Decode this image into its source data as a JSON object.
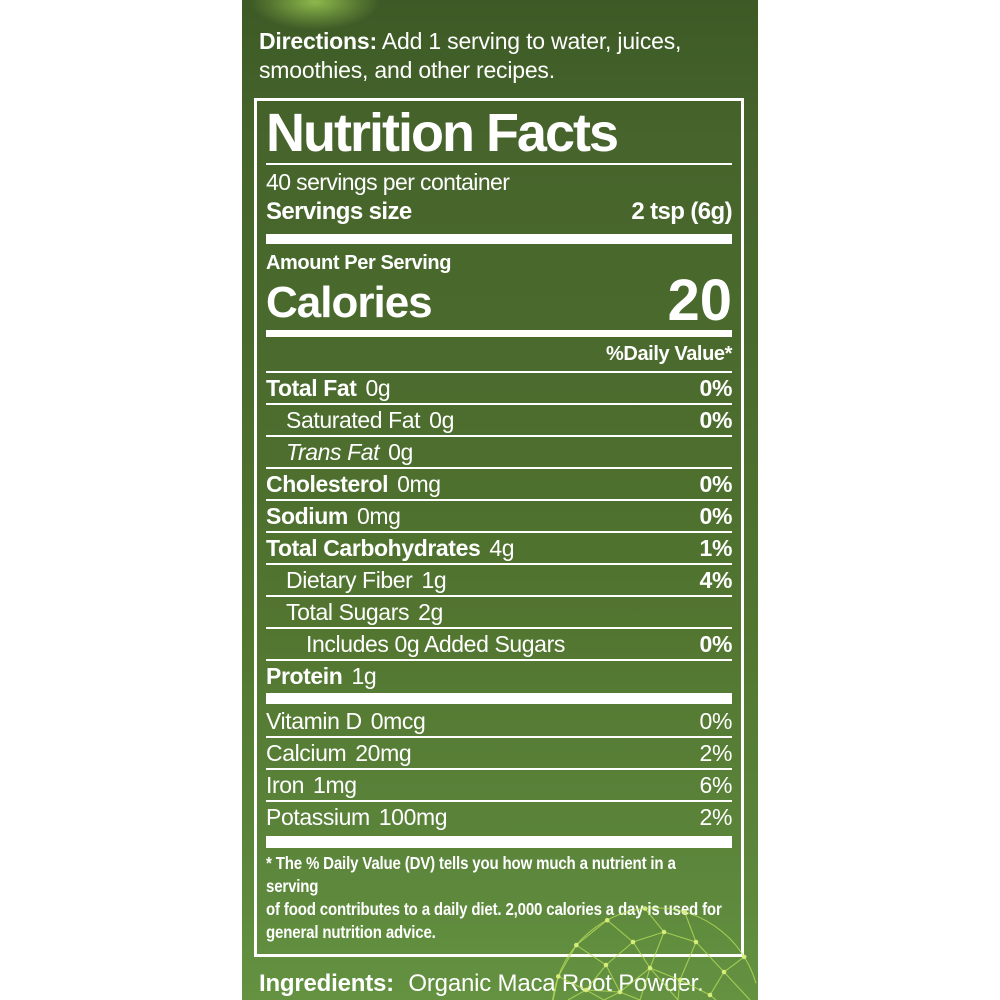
{
  "directions": {
    "label": "Directions:",
    "text": "Add 1 serving to water, juices, smoothies, and other recipes."
  },
  "nutrition": {
    "title": "Nutrition Facts",
    "servings_per_container": "40 servings per container",
    "serving_size_label": "Servings size",
    "serving_size_value": "2 tsp (6g)",
    "amount_per_serving": "Amount Per Serving",
    "calories_label": "Calories",
    "calories_value": "20",
    "daily_value_header": "%Daily Value*",
    "rows": [
      {
        "name": "Total Fat",
        "amount": "0g",
        "dv": "0%",
        "style": "bold",
        "indent": 0
      },
      {
        "name": "Saturated Fat",
        "amount": "0g",
        "dv": "0%",
        "style": "regular",
        "indent": 1
      },
      {
        "name": "Trans Fat",
        "amount": "0g",
        "dv": "",
        "style": "italic",
        "indent": 1
      },
      {
        "name": "Cholesterol",
        "amount": "0mg",
        "dv": "0%",
        "style": "bold",
        "indent": 0
      },
      {
        "name": "Sodium",
        "amount": "0mg",
        "dv": "0%",
        "style": "bold",
        "indent": 0
      },
      {
        "name": "Total Carbohydrates",
        "amount": "4g",
        "dv": "1%",
        "style": "bold",
        "indent": 0
      },
      {
        "name": "Dietary Fiber",
        "amount": "1g",
        "dv": "4%",
        "style": "regular",
        "indent": 1
      },
      {
        "name": "Total Sugars",
        "amount": "2g",
        "dv": "",
        "style": "regular",
        "indent": 1
      },
      {
        "name": "Includes 0g Added Sugars",
        "amount": "",
        "dv": "0%",
        "style": "regular",
        "indent": 2
      },
      {
        "name": "Protein",
        "amount": "1g",
        "dv": "",
        "style": "bold",
        "indent": 0
      }
    ],
    "vitamins": [
      {
        "name": "Vitamin D",
        "amount": "0mcg",
        "dv": "0%"
      },
      {
        "name": "Calcium",
        "amount": "20mg",
        "dv": "2%"
      },
      {
        "name": "Iron",
        "amount": "1mg",
        "dv": "6%"
      },
      {
        "name": "Potassium",
        "amount": "100mg",
        "dv": "2%"
      }
    ],
    "footnote": "* The % Daily Value (DV) tells you how much a nutrient in a serving\nof food contributes to a daily diet. 2,000 calories a day is used for\ngeneral nutrition advice."
  },
  "ingredients": {
    "label": "Ingredients:",
    "text": "Organic Maca Root Powder."
  },
  "colors": {
    "label_green_top": "#3d5a26",
    "label_green_mid": "#4c6d2e",
    "label_green_bottom": "#649241",
    "text_white": "#ffffff",
    "network_line_green": "#b9e05a",
    "network_dot_green": "#d9ef7d"
  },
  "decorations": {
    "top_glow": "green-glow-spot",
    "bottom_right": "polygon-network-sphere"
  }
}
